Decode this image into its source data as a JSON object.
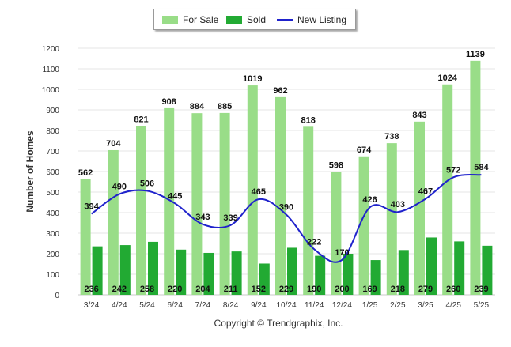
{
  "chart_data": {
    "type": "bar",
    "title": "",
    "xlabel": "",
    "ylabel": "Number of Homes",
    "ylim": [
      0,
      1200
    ],
    "yticks": [
      0,
      100,
      200,
      300,
      400,
      500,
      600,
      700,
      800,
      900,
      1000,
      1100,
      1200
    ],
    "categories": [
      "3/24",
      "4/24",
      "5/24",
      "6/24",
      "7/24",
      "8/24",
      "9/24",
      "10/24",
      "11/24",
      "12/24",
      "1/25",
      "2/25",
      "3/25",
      "4/25",
      "5/25"
    ],
    "series": [
      {
        "name": "For Sale",
        "kind": "bar",
        "color": "#99dd88",
        "values": [
          562,
          704,
          821,
          908,
          884,
          885,
          1019,
          962,
          818,
          598,
          674,
          738,
          843,
          1024,
          1139
        ]
      },
      {
        "name": "Sold",
        "kind": "bar",
        "color": "#22aa33",
        "values": [
          236,
          242,
          258,
          220,
          204,
          211,
          152,
          229,
          190,
          200,
          169,
          218,
          279,
          260,
          239
        ]
      },
      {
        "name": "New Listing",
        "kind": "line",
        "color": "#1f22cc",
        "values": [
          394,
          490,
          506,
          445,
          343,
          339,
          465,
          390,
          222,
          170,
          426,
          403,
          467,
          572,
          584
        ]
      }
    ],
    "grid": true,
    "legend_position": "top-center",
    "footer": "Copyright © Trendgraphix, Inc."
  }
}
